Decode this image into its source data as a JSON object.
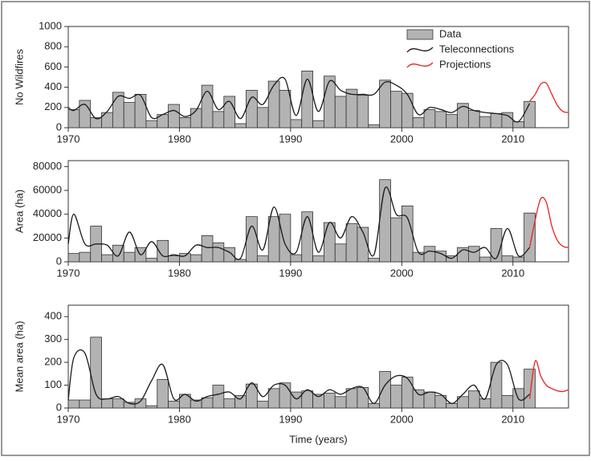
{
  "chart_data": [
    {
      "type": "bar",
      "ylabel": "No Wildfires",
      "xlim": [
        1970,
        2015
      ],
      "xticks": [
        1970,
        1980,
        1990,
        2000,
        2010
      ],
      "ylim": [
        0,
        1000
      ],
      "yticks": [
        0,
        200,
        400,
        600,
        800,
        1000
      ],
      "legend": "upper right",
      "series": [
        {
          "name": "Data",
          "color": "#b3b3b3",
          "bins": [
            1970,
            1971,
            1972,
            1973,
            1974,
            1975,
            1976,
            1977,
            1978,
            1979,
            1980,
            1981,
            1982,
            1983,
            1984,
            1985,
            1986,
            1987,
            1988,
            1989,
            1990,
            1991,
            1992,
            1993,
            1994,
            1995,
            1996,
            1997,
            1998,
            1999,
            2000,
            2001,
            2002,
            2003,
            2004,
            2005,
            2006,
            2007,
            2008,
            2009,
            2010,
            2011,
            2012
          ],
          "values": [
            180,
            270,
            100,
            150,
            350,
            250,
            330,
            70,
            130,
            230,
            100,
            190,
            420,
            160,
            310,
            40,
            370,
            200,
            460,
            370,
            80,
            560,
            70,
            510,
            310,
            380,
            320,
            30,
            470,
            360,
            340,
            100,
            180,
            160,
            130,
            240,
            170,
            110,
            140,
            150,
            60,
            260
          ]
        },
        {
          "name": "Teleconnections",
          "color": "#1a1a1a",
          "x": [
            1970,
            1970.5,
            1971.5,
            1972.5,
            1973.5,
            1974.5,
            1975.5,
            1976.5,
            1977.5,
            1978.5,
            1979.5,
            1980.5,
            1981.5,
            1982.5,
            1983.5,
            1984.5,
            1985.5,
            1986.5,
            1987.5,
            1988.5,
            1989.5,
            1990.5,
            1991.5,
            1992.5,
            1993.5,
            1994.5,
            1995.5,
            1996.5,
            1997.5,
            1998.5,
            1999.5,
            2000.5,
            2001.5,
            2002.5,
            2003.5,
            2004.5,
            2005.5,
            2006.5,
            2007.5,
            2008.5,
            2009.5,
            2010.5,
            2011.5
          ],
          "values": [
            200,
            170,
            230,
            90,
            160,
            310,
            290,
            320,
            100,
            130,
            170,
            110,
            170,
            360,
            180,
            260,
            90,
            300,
            230,
            420,
            480,
            120,
            480,
            160,
            460,
            370,
            330,
            330,
            330,
            450,
            420,
            330,
            130,
            200,
            180,
            150,
            210,
            170,
            150,
            140,
            120,
            60,
            240
          ]
        },
        {
          "name": "Projections",
          "color": "#e8231e",
          "x": [
            2011.5,
            2012,
            2012.5,
            2013,
            2013.5,
            2014,
            2014.5,
            2015
          ],
          "values": [
            260,
            330,
            430,
            440,
            330,
            220,
            160,
            150
          ]
        }
      ]
    },
    {
      "type": "bar",
      "ylabel": "Area (ha)",
      "xlim": [
        1970,
        2015
      ],
      "xticks": [
        1970,
        1980,
        1990,
        2000,
        2010
      ],
      "ylim": [
        0,
        85000
      ],
      "yticks": [
        0,
        20000,
        40000,
        60000,
        80000
      ],
      "series": [
        {
          "color": "#b3b3b3",
          "bins": [
            1970,
            1971,
            1972,
            1973,
            1974,
            1975,
            1976,
            1977,
            1978,
            1979,
            1980,
            1981,
            1982,
            1983,
            1984,
            1985,
            1986,
            1987,
            1988,
            1989,
            1990,
            1991,
            1992,
            1993,
            1994,
            1995,
            1996,
            1997,
            1998,
            1999,
            2000,
            2001,
            2002,
            2003,
            2004,
            2005,
            2006,
            2007,
            2008,
            2009,
            2010,
            2011,
            2012
          ],
          "values": [
            7000,
            8000,
            30000,
            6000,
            14000,
            8000,
            12000,
            3000,
            18000,
            5000,
            7000,
            6000,
            22000,
            16000,
            12000,
            2000,
            38000,
            5000,
            38000,
            40000,
            6000,
            42000,
            5000,
            33000,
            15000,
            32000,
            29000,
            3000,
            69000,
            37000,
            47000,
            8000,
            13000,
            9000,
            5000,
            12000,
            13000,
            4000,
            28000,
            5000,
            4000,
            41000
          ]
        },
        {
          "color": "#1a1a1a",
          "x": [
            1970,
            1970.5,
            1971.5,
            1972.5,
            1973.5,
            1974.5,
            1975.5,
            1976.5,
            1977.5,
            1978.5,
            1979.5,
            1980.5,
            1981.5,
            1982.5,
            1983.5,
            1984.5,
            1985.5,
            1986.5,
            1987.5,
            1988.5,
            1989.5,
            1990.5,
            1991.5,
            1992.5,
            1993.5,
            1994.5,
            1995.5,
            1996.5,
            1997.5,
            1998.5,
            1999.5,
            2000.5,
            2001.5,
            2002.5,
            2003.5,
            2004.5,
            2005.5,
            2006.5,
            2007.5,
            2008.5,
            2009.5,
            2010.5,
            2011.5
          ],
          "values": [
            15000,
            40000,
            15000,
            15000,
            14000,
            5000,
            25000,
            6000,
            17000,
            5000,
            6000,
            5000,
            14000,
            12000,
            12000,
            8000,
            3000,
            30000,
            10000,
            46000,
            15000,
            8000,
            38000,
            8000,
            33000,
            20000,
            38000,
            25000,
            6000,
            62000,
            40000,
            37000,
            8000,
            9000,
            7000,
            3000,
            10000,
            8000,
            12000,
            3000,
            28000,
            5000,
            12000
          ]
        },
        {
          "color": "#e8231e",
          "x": [
            2011.5,
            2012,
            2012.5,
            2013,
            2013.5,
            2014,
            2014.5,
            2015
          ],
          "values": [
            12000,
            35000,
            53000,
            50000,
            30000,
            18000,
            13000,
            12000
          ]
        }
      ]
    },
    {
      "type": "bar",
      "ylabel": "Mean area (ha)",
      "xlabel": "Time (years)",
      "xlim": [
        1970,
        2015
      ],
      "xticks": [
        1970,
        1980,
        1990,
        2000,
        2010
      ],
      "ylim": [
        0,
        450
      ],
      "yticks": [
        0,
        100,
        200,
        300,
        400
      ],
      "series": [
        {
          "color": "#b3b3b3",
          "bins": [
            1970,
            1971,
            1972,
            1973,
            1974,
            1975,
            1976,
            1977,
            1978,
            1979,
            1980,
            1981,
            1982,
            1983,
            1984,
            1985,
            1986,
            1987,
            1988,
            1989,
            1990,
            1991,
            1992,
            1993,
            1994,
            1995,
            1996,
            1997,
            1998,
            1999,
            2000,
            2001,
            2002,
            2003,
            2004,
            2005,
            2006,
            2007,
            2008,
            2009,
            2010,
            2011,
            2012
          ],
          "values": [
            35,
            35,
            310,
            40,
            40,
            25,
            40,
            10,
            125,
            30,
            60,
            35,
            45,
            100,
            40,
            55,
            105,
            30,
            85,
            110,
            70,
            75,
            60,
            65,
            50,
            85,
            90,
            20,
            160,
            100,
            135,
            80,
            70,
            55,
            20,
            50,
            75,
            40,
            200,
            55,
            85,
            170
          ]
        },
        {
          "color": "#1a1a1a",
          "x": [
            1970,
            1970.5,
            1971.5,
            1972.5,
            1973.5,
            1974.5,
            1975.5,
            1976.5,
            1977.5,
            1978.5,
            1979.5,
            1980.5,
            1981.5,
            1982.5,
            1983.5,
            1984.5,
            1985.5,
            1986.5,
            1987.5,
            1988.5,
            1989.5,
            1990.5,
            1991.5,
            1992.5,
            1993.5,
            1994.5,
            1995.5,
            1996.5,
            1997.5,
            1998.5,
            1999.5,
            2000.5,
            2001.5,
            2002.5,
            2003.5,
            2004.5,
            2005.5,
            2006.5,
            2007.5,
            2008.5,
            2009.5,
            2010.5,
            2011.5
          ],
          "values": [
            35,
            220,
            240,
            60,
            40,
            50,
            20,
            30,
            120,
            190,
            40,
            60,
            30,
            50,
            60,
            70,
            40,
            110,
            50,
            100,
            100,
            40,
            80,
            50,
            80,
            60,
            85,
            90,
            20,
            100,
            140,
            130,
            60,
            70,
            60,
            20,
            60,
            100,
            40,
            190,
            190,
            40,
            60
          ]
        },
        {
          "color": "#e8231e",
          "x": [
            2011.5,
            2012,
            2012.5,
            2013,
            2013.5,
            2014,
            2014.5,
            2015
          ],
          "values": [
            40,
            205,
            140,
            100,
            85,
            75,
            72,
            80
          ]
        }
      ]
    }
  ]
}
